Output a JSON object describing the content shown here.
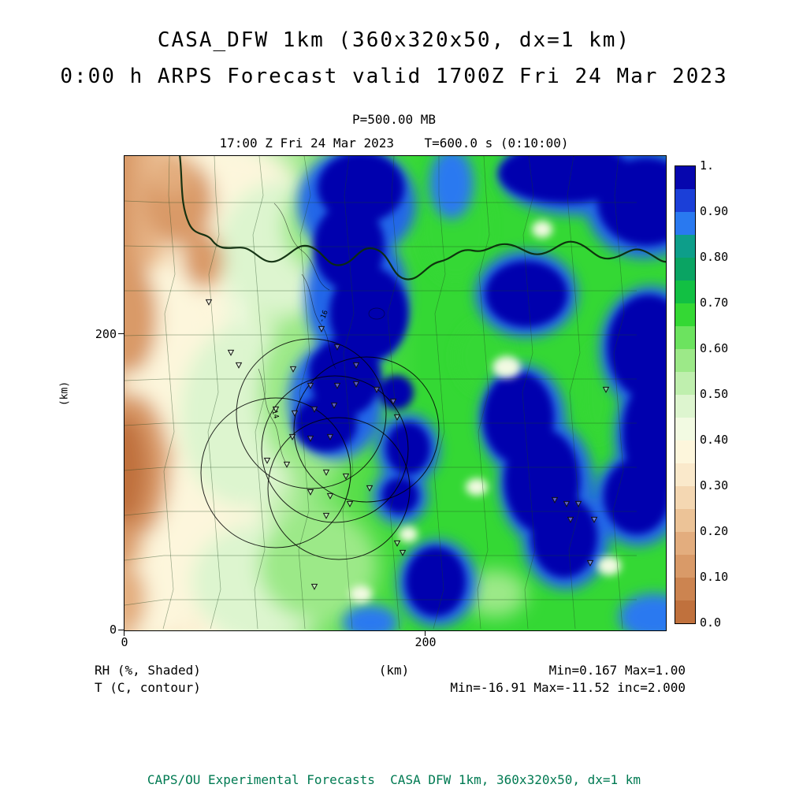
{
  "header": {
    "title_line1": "CASA_DFW 1km (360x320x50, dx=1 km)",
    "title_line2": "0:00 h ARPS Forecast valid 1700Z Fri 24 Mar 2023",
    "pressure_level": "P=500.00 MB",
    "valid_line": "17:00 Z Fri 24 Mar 2023    T=600.0 s (0:10:00)"
  },
  "axes": {
    "y_label": "(km)",
    "x_label": "(km)",
    "y_tick_200": "200",
    "y_tick_0": "0",
    "x_tick_0": "0",
    "x_tick_200": "200"
  },
  "legend": {
    "shaded_label": "RH (%, Shaded)",
    "contour_label": "T (C, contour)",
    "shaded_stats": "Min=0.167 Max=1.00",
    "contour_stats": "Min=-16.91 Max=-11.52 inc=2.000"
  },
  "footer": {
    "credit": "CAPS/OU Experimental Forecasts  CASA DFW 1km, 360x320x50, dx=1 km"
  },
  "chart_data": {
    "type": "heatmap",
    "title": "CASA_DFW 1km (360x320x50, dx=1 km)",
    "subtitle": "0:00 h ARPS Forecast valid 1700Z Fri 24 Mar 2023",
    "pressure_level_mb": 500.0,
    "valid_time": "17:00 Z Fri 24 Mar 2023",
    "forecast_seconds": 600.0,
    "forecast_time_hms": "0:10:00",
    "grid": "360x320x50, dx=1 km",
    "xlabel": "(km)",
    "ylabel": "(km)",
    "x_ticks": [
      0,
      200
    ],
    "y_ticks": [
      0,
      200
    ],
    "x_range_km": [
      0,
      360
    ],
    "y_range_km": [
      0,
      320
    ],
    "shaded_field": {
      "name": "RH",
      "units": "%",
      "min": 0.167,
      "max": 1.0
    },
    "contour_field": {
      "name": "T",
      "units": "C",
      "min": -16.91,
      "max": -11.52,
      "increment": 2.0,
      "visible_labels": [
        "-16",
        "-14"
      ]
    },
    "colorbar": {
      "tick_labels": [
        "1.",
        "0.90",
        "0.80",
        "0.70",
        "0.60",
        "0.50",
        "0.40",
        "0.30",
        "0.20",
        "0.10",
        "0.0"
      ],
      "segment_colors_top_to_bottom": [
        "#0606ae",
        "#1b3fd8",
        "#2979f0",
        "#0d9e8a",
        "#0aa463",
        "#12c043",
        "#34d834",
        "#6ce35f",
        "#9ce988",
        "#bfefae",
        "#ddf5cf",
        "#f2fae2",
        "#fdf6dc",
        "#fae9cb",
        "#f4d7b2",
        "#ecc397",
        "#e3ad7e",
        "#d99a68",
        "#cc8450",
        "#c0713d"
      ],
      "legend_position": "right"
    }
  }
}
